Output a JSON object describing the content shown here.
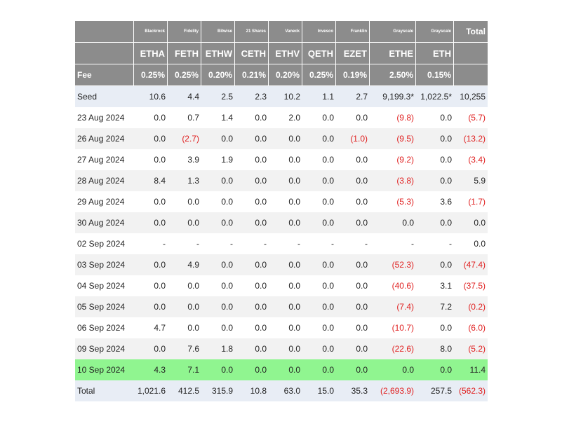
{
  "issuers": [
    "Blackrock",
    "Fidelity",
    "Bitwise",
    "21 Shares",
    "Vaneck",
    "Invesco",
    "Franklin",
    "Grayscale",
    "Grayscale"
  ],
  "total_header": "Total",
  "tickers": [
    "ETHA",
    "FETH",
    "ETHW",
    "CETH",
    "ETHV",
    "QETH",
    "EZET",
    "ETHE",
    "ETH"
  ],
  "fee_label": "Fee",
  "fees": [
    "0.25%",
    "0.25%",
    "0.20%",
    "0.21%",
    "0.20%",
    "0.25%",
    "0.19%",
    "2.50%",
    "0.15%"
  ],
  "rows": [
    {
      "label": "Seed",
      "cells": [
        "10.6",
        "4.4",
        "2.5",
        "2.3",
        "10.2",
        "1.1",
        "2.7",
        "9,199.3*",
        "1,022.5*",
        "10,255"
      ],
      "style": "seed"
    },
    {
      "label": "23 Aug 2024",
      "cells": [
        "0.0",
        "0.7",
        "1.4",
        "0.0",
        "2.0",
        "0.0",
        "0.0",
        "(9.8)",
        "0.0",
        "(5.7)"
      ],
      "style": "odd"
    },
    {
      "label": "26 Aug 2024",
      "cells": [
        "0.0",
        "(2.7)",
        "0.0",
        "0.0",
        "0.0",
        "0.0",
        "(1.0)",
        "(9.5)",
        "0.0",
        "(13.2)"
      ],
      "style": "even"
    },
    {
      "label": "27 Aug 2024",
      "cells": [
        "0.0",
        "3.9",
        "1.9",
        "0.0",
        "0.0",
        "0.0",
        "0.0",
        "(9.2)",
        "0.0",
        "(3.4)"
      ],
      "style": "odd"
    },
    {
      "label": "28 Aug 2024",
      "cells": [
        "8.4",
        "1.3",
        "0.0",
        "0.0",
        "0.0",
        "0.0",
        "0.0",
        "(3.8)",
        "0.0",
        "5.9"
      ],
      "style": "even"
    },
    {
      "label": "29 Aug 2024",
      "cells": [
        "0.0",
        "0.0",
        "0.0",
        "0.0",
        "0.0",
        "0.0",
        "0.0",
        "(5.3)",
        "3.6",
        "(1.7)"
      ],
      "style": "odd"
    },
    {
      "label": "30 Aug 2024",
      "cells": [
        "0.0",
        "0.0",
        "0.0",
        "0.0",
        "0.0",
        "0.0",
        "0.0",
        "0.0",
        "0.0",
        "0.0"
      ],
      "style": "even"
    },
    {
      "label": "02 Sep 2024",
      "cells": [
        "-",
        "-",
        "-",
        "-",
        "-",
        "-",
        "-",
        "-",
        "-",
        "0.0"
      ],
      "style": "odd"
    },
    {
      "label": "03 Sep 2024",
      "cells": [
        "0.0",
        "4.9",
        "0.0",
        "0.0",
        "0.0",
        "0.0",
        "0.0",
        "(52.3)",
        "0.0",
        "(47.4)"
      ],
      "style": "even"
    },
    {
      "label": "04 Sep 2024",
      "cells": [
        "0.0",
        "0.0",
        "0.0",
        "0.0",
        "0.0",
        "0.0",
        "0.0",
        "(40.6)",
        "3.1",
        "(37.5)"
      ],
      "style": "odd"
    },
    {
      "label": "05 Sep 2024",
      "cells": [
        "0.0",
        "0.0",
        "0.0",
        "0.0",
        "0.0",
        "0.0",
        "0.0",
        "(7.4)",
        "7.2",
        "(0.2)"
      ],
      "style": "even"
    },
    {
      "label": "06 Sep 2024",
      "cells": [
        "4.7",
        "0.0",
        "0.0",
        "0.0",
        "0.0",
        "0.0",
        "0.0",
        "(10.7)",
        "0.0",
        "(6.0)"
      ],
      "style": "odd"
    },
    {
      "label": "09 Sep 2024",
      "cells": [
        "0.0",
        "7.6",
        "1.8",
        "0.0",
        "0.0",
        "0.0",
        "0.0",
        "(22.6)",
        "8.0",
        "(5.2)"
      ],
      "style": "even"
    },
    {
      "label": "10 Sep 2024",
      "cells": [
        "4.3",
        "7.1",
        "0.0",
        "0.0",
        "0.0",
        "0.0",
        "0.0",
        "0.0",
        "0.0",
        "11.4"
      ],
      "style": "highlight"
    },
    {
      "label": "Total",
      "cells": [
        "1,021.6",
        "412.5",
        "315.9",
        "10.8",
        "63.0",
        "15.0",
        "35.3",
        "(2,693.9)",
        "257.5",
        "(562.3)"
      ],
      "style": "total-row"
    }
  ],
  "colors": {
    "header_bg": "#8c8c8c",
    "seed_bg": "#e8edf5",
    "alt_row_bg": "#f2f2f2",
    "highlight_bg": "#90f590",
    "negative_text": "#e02020"
  }
}
